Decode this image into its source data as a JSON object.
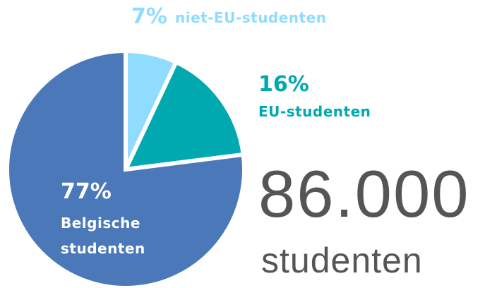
{
  "chart_data": {
    "type": "pie",
    "categories": [
      "niet-EU-studenten",
      "EU-studenten",
      "Belgische studenten"
    ],
    "values": [
      7,
      16,
      77
    ],
    "value_labels": [
      "7%",
      "16%",
      "77%"
    ],
    "colors": [
      "#8fdcff",
      "#00a9b0",
      "#4a78b8"
    ],
    "total": "86.000",
    "total_label": "studenten"
  }
}
